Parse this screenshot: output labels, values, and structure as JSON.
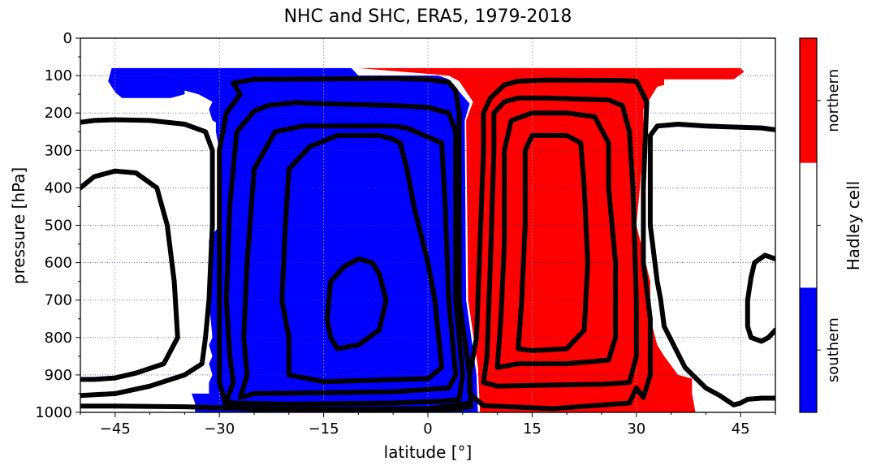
{
  "chart_data": {
    "type": "heatmap",
    "title": "NHC and SHC, ERA5, 1979-2018",
    "xlabel": "latitude [°]",
    "ylabel": "pressure [hPa]",
    "xlim": [
      -50,
      50
    ],
    "ylim": [
      1000,
      0
    ],
    "xticks": [
      -45,
      -30,
      -15,
      0,
      15,
      30,
      45
    ],
    "xtick_labels": [
      "−45",
      "−30",
      "−15",
      "0",
      "15",
      "30",
      "45"
    ],
    "yticks": [
      0,
      100,
      200,
      300,
      400,
      500,
      600,
      700,
      800,
      900,
      1000
    ],
    "ytick_labels": [
      "0",
      "100",
      "200",
      "300",
      "400",
      "500",
      "600",
      "700",
      "800",
      "900",
      "1000"
    ],
    "grid": true,
    "colorbar": {
      "label": "Hadley cell",
      "categories": [
        "southern",
        "",
        "northern"
      ],
      "colors": [
        "#0000ff",
        "#ffffff",
        "#ff0000"
      ]
    },
    "regions": [
      {
        "name": "southern",
        "color": "#0000ff",
        "polygon": [
          [
            -45.5,
            80
          ],
          [
            -11,
            80
          ],
          [
            -10,
            100
          ],
          [
            1.5,
            100
          ],
          [
            3,
            110
          ],
          [
            6,
            175
          ],
          [
            5.3,
            220
          ],
          [
            5.5,
            700
          ],
          [
            7,
            900
          ],
          [
            7.2,
            1000
          ],
          [
            -33.5,
            1000
          ],
          [
            -33.5,
            975
          ],
          [
            -34,
            950
          ],
          [
            -31.5,
            950
          ],
          [
            -31.5,
            920
          ],
          [
            -31,
            900
          ],
          [
            -31.5,
            870
          ],
          [
            -31,
            850
          ],
          [
            -31.5,
            820
          ],
          [
            -31,
            800
          ],
          [
            -31.5,
            700
          ],
          [
            -31.5,
            600
          ],
          [
            -31.5,
            540
          ],
          [
            -30,
            500
          ],
          [
            -30,
            300
          ],
          [
            -30.5,
            250
          ],
          [
            -30.5,
            225
          ],
          [
            -31,
            220
          ],
          [
            -31.5,
            190
          ],
          [
            -31,
            170
          ],
          [
            -33,
            150
          ],
          [
            -35,
            140
          ],
          [
            -35,
            150
          ],
          [
            -37,
            160
          ],
          [
            -44,
            160
          ],
          [
            -45,
            145
          ],
          [
            -46,
            115
          ]
        ]
      },
      {
        "name": "northern",
        "color": "#ff0000",
        "polygon": [
          [
            -10,
            80
          ],
          [
            45,
            80
          ],
          [
            45.5,
            90
          ],
          [
            44,
            110
          ],
          [
            34,
            110
          ],
          [
            34,
            125
          ],
          [
            33,
            130
          ],
          [
            31,
            190
          ],
          [
            31,
            300
          ],
          [
            30,
            500
          ],
          [
            32,
            650
          ],
          [
            32,
            750
          ],
          [
            33,
            820
          ],
          [
            34,
            850
          ],
          [
            36,
            900
          ],
          [
            38,
            910
          ],
          [
            38,
            950
          ],
          [
            38.5,
            1000
          ],
          [
            7.5,
            1000
          ],
          [
            7.2,
            880
          ],
          [
            5.8,
            700
          ],
          [
            5.5,
            220
          ],
          [
            6.5,
            170
          ],
          [
            4.5,
            115
          ],
          [
            3,
            100
          ]
        ]
      }
    ],
    "contour_levels": [
      {
        "points": [
          [
            -27,
            150
          ],
          [
            -28,
            120
          ],
          [
            -25,
            110
          ],
          [
            -5,
            108
          ],
          [
            0,
            110
          ],
          [
            3,
            118
          ],
          [
            4,
            140
          ],
          [
            4.5,
            200
          ],
          [
            4.5,
            700
          ],
          [
            6,
            900
          ],
          [
            6.2,
            985
          ],
          [
            2,
            990
          ],
          [
            -25,
            992
          ],
          [
            -29,
            985
          ],
          [
            -30,
            920
          ],
          [
            -30,
            600
          ],
          [
            -30,
            300
          ],
          [
            -29,
            200
          ]
        ],
        "closed": true
      },
      {
        "points": [
          [
            -29,
            970
          ],
          [
            -28,
            920
          ],
          [
            -28.5,
            850
          ],
          [
            -29,
            700
          ],
          [
            -28.5,
            450
          ],
          [
            -27.5,
            250
          ],
          [
            -25,
            195
          ],
          [
            -23,
            180
          ],
          [
            -19,
            172
          ],
          [
            -15,
            175
          ],
          [
            -5,
            180
          ],
          [
            0,
            185
          ],
          [
            3,
            200
          ],
          [
            4,
            250
          ],
          [
            4,
            700
          ],
          [
            5,
            900
          ],
          [
            4.5,
            965
          ],
          [
            2,
            970
          ],
          [
            -5,
            975
          ],
          [
            -20,
            978
          ],
          [
            -28,
            975
          ]
        ],
        "closed": true
      },
      {
        "points": [
          [
            -27,
            960
          ],
          [
            -26,
            900
          ],
          [
            -26.5,
            800
          ],
          [
            -26,
            600
          ],
          [
            -25,
            350
          ],
          [
            -22,
            250
          ],
          [
            -18,
            235
          ],
          [
            -5,
            235
          ],
          [
            -3,
            240
          ],
          [
            2,
            280
          ],
          [
            2.5,
            450
          ],
          [
            3,
            700
          ],
          [
            4,
            900
          ],
          [
            3,
            935
          ],
          [
            -5,
            945
          ],
          [
            -25,
            950
          ]
        ],
        "closed": true
      },
      {
        "points": [
          [
            -20,
            800
          ],
          [
            -21,
            700
          ],
          [
            -20.5,
            500
          ],
          [
            -20,
            350
          ],
          [
            -17,
            290
          ],
          [
            -13,
            260
          ],
          [
            -7,
            260
          ],
          [
            -5,
            270
          ],
          [
            -4,
            280
          ],
          [
            -3,
            350
          ],
          [
            -2,
            450
          ],
          [
            0,
            600
          ],
          [
            1,
            700
          ],
          [
            2,
            880
          ],
          [
            0,
            910
          ],
          [
            -15,
            918
          ],
          [
            -20,
            900
          ]
        ],
        "closed": true
      },
      {
        "points": [
          [
            -14,
            800
          ],
          [
            -14.5,
            750
          ],
          [
            -14,
            650
          ],
          [
            -12,
            610
          ],
          [
            -10,
            590
          ],
          [
            -8,
            600
          ],
          [
            -7,
            630
          ],
          [
            -6,
            700
          ],
          [
            -7,
            780
          ],
          [
            -10,
            820
          ],
          [
            -13,
            830
          ]
        ],
        "closed": true
      },
      {
        "points": [
          [
            6,
            950
          ],
          [
            6,
            900
          ],
          [
            7,
            800
          ],
          [
            7.5,
            550
          ],
          [
            8,
            300
          ],
          [
            8,
            200
          ],
          [
            9,
            160
          ],
          [
            11,
            125
          ],
          [
            13,
            115
          ],
          [
            17,
            112
          ],
          [
            28,
            113
          ],
          [
            30,
            115
          ],
          [
            31.5,
            170
          ],
          [
            31,
            400
          ],
          [
            31,
            600
          ],
          [
            32,
            750
          ],
          [
            32,
            900
          ],
          [
            31,
            960
          ],
          [
            30,
            935
          ],
          [
            29,
            975
          ],
          [
            18,
            990
          ],
          [
            8,
            982
          ]
        ],
        "closed": true
      },
      {
        "points": [
          [
            8,
            920
          ],
          [
            8.5,
            850
          ],
          [
            9,
            600
          ],
          [
            9.5,
            300
          ],
          [
            9.5,
            200
          ],
          [
            11,
            170
          ],
          [
            13,
            160
          ],
          [
            17,
            160
          ],
          [
            26,
            165
          ],
          [
            28,
            180
          ],
          [
            29,
            250
          ],
          [
            29.5,
            400
          ],
          [
            30,
            700
          ],
          [
            30,
            850
          ],
          [
            29,
            920
          ],
          [
            25,
            925
          ],
          [
            15,
            928
          ],
          [
            10,
            930
          ]
        ],
        "closed": true
      },
      {
        "points": [
          [
            10,
            880
          ],
          [
            10.5,
            750
          ],
          [
            11,
            550
          ],
          [
            11,
            300
          ],
          [
            12,
            220
          ],
          [
            15,
            200
          ],
          [
            20,
            200
          ],
          [
            24,
            210
          ],
          [
            26,
            280
          ],
          [
            26,
            400
          ],
          [
            27,
            600
          ],
          [
            27,
            800
          ],
          [
            26,
            860
          ],
          [
            20,
            870
          ],
          [
            13,
            870
          ]
        ],
        "closed": true
      },
      {
        "points": [
          [
            13,
            830
          ],
          [
            13.5,
            700
          ],
          [
            14,
            500
          ],
          [
            14,
            300
          ],
          [
            15,
            260
          ],
          [
            20,
            260
          ],
          [
            22,
            280
          ],
          [
            22.5,
            400
          ],
          [
            23,
            600
          ],
          [
            22.5,
            780
          ],
          [
            20,
            830
          ],
          [
            15,
            835
          ]
        ],
        "closed": true
      },
      {
        "points": [
          [
            6,
            975
          ],
          [
            4,
            980
          ],
          [
            2,
            985
          ],
          [
            0,
            990
          ],
          [
            -5,
            995
          ],
          [
            -15,
            993
          ],
          [
            -25,
            990
          ],
          [
            -35,
            985
          ],
          [
            -45,
            983
          ],
          [
            -50,
            983
          ]
        ],
        "closed": false
      },
      {
        "points": [
          [
            5,
            990
          ],
          [
            2,
            993
          ],
          [
            -5,
            997
          ],
          [
            -15,
            998
          ],
          [
            -20,
            998
          ]
        ],
        "closed": false
      },
      {
        "points": [
          [
            -50,
            225
          ],
          [
            -48,
            220
          ],
          [
            -45,
            218
          ],
          [
            -40,
            220
          ],
          [
            -35,
            230
          ],
          [
            -32,
            250
          ],
          [
            -31,
            300
          ],
          [
            -31,
            500
          ],
          [
            -31.5,
            700
          ],
          [
            -32,
            800
          ],
          [
            -32.5,
            870
          ],
          [
            -35,
            900
          ],
          [
            -40,
            930
          ],
          [
            -45,
            950
          ],
          [
            -50,
            955
          ]
        ],
        "closed": false
      },
      {
        "points": [
          [
            -50,
            400
          ],
          [
            -48,
            370
          ],
          [
            -45,
            355
          ],
          [
            -42,
            360
          ],
          [
            -39,
            400
          ],
          [
            -37.5,
            500
          ],
          [
            -36.5,
            650
          ],
          [
            -36,
            800
          ],
          [
            -38,
            870
          ],
          [
            -42,
            895
          ],
          [
            -45,
            908
          ],
          [
            -48,
            912
          ],
          [
            -50,
            912
          ]
        ],
        "closed": false
      },
      {
        "points": [
          [
            50,
            245
          ],
          [
            48,
            240
          ],
          [
            40,
            235
          ],
          [
            36,
            230
          ],
          [
            33,
            235
          ],
          [
            32,
            260
          ],
          [
            32,
            500
          ],
          [
            33,
            650
          ],
          [
            33.5,
            700
          ],
          [
            34,
            770
          ],
          [
            37,
            880
          ],
          [
            40,
            935
          ],
          [
            42,
            955
          ],
          [
            44,
            980
          ],
          [
            45,
            975
          ],
          [
            46,
            965
          ],
          [
            48,
            962
          ],
          [
            50,
            962
          ]
        ],
        "closed": false
      },
      {
        "points": [
          [
            50,
            590
          ],
          [
            48.5,
            580
          ],
          [
            47,
            600
          ],
          [
            46.5,
            640
          ],
          [
            46,
            700
          ],
          [
            46,
            770
          ],
          [
            46.5,
            800
          ],
          [
            48,
            810
          ],
          [
            49,
            800
          ],
          [
            50,
            780
          ]
        ],
        "closed": false
      }
    ]
  }
}
